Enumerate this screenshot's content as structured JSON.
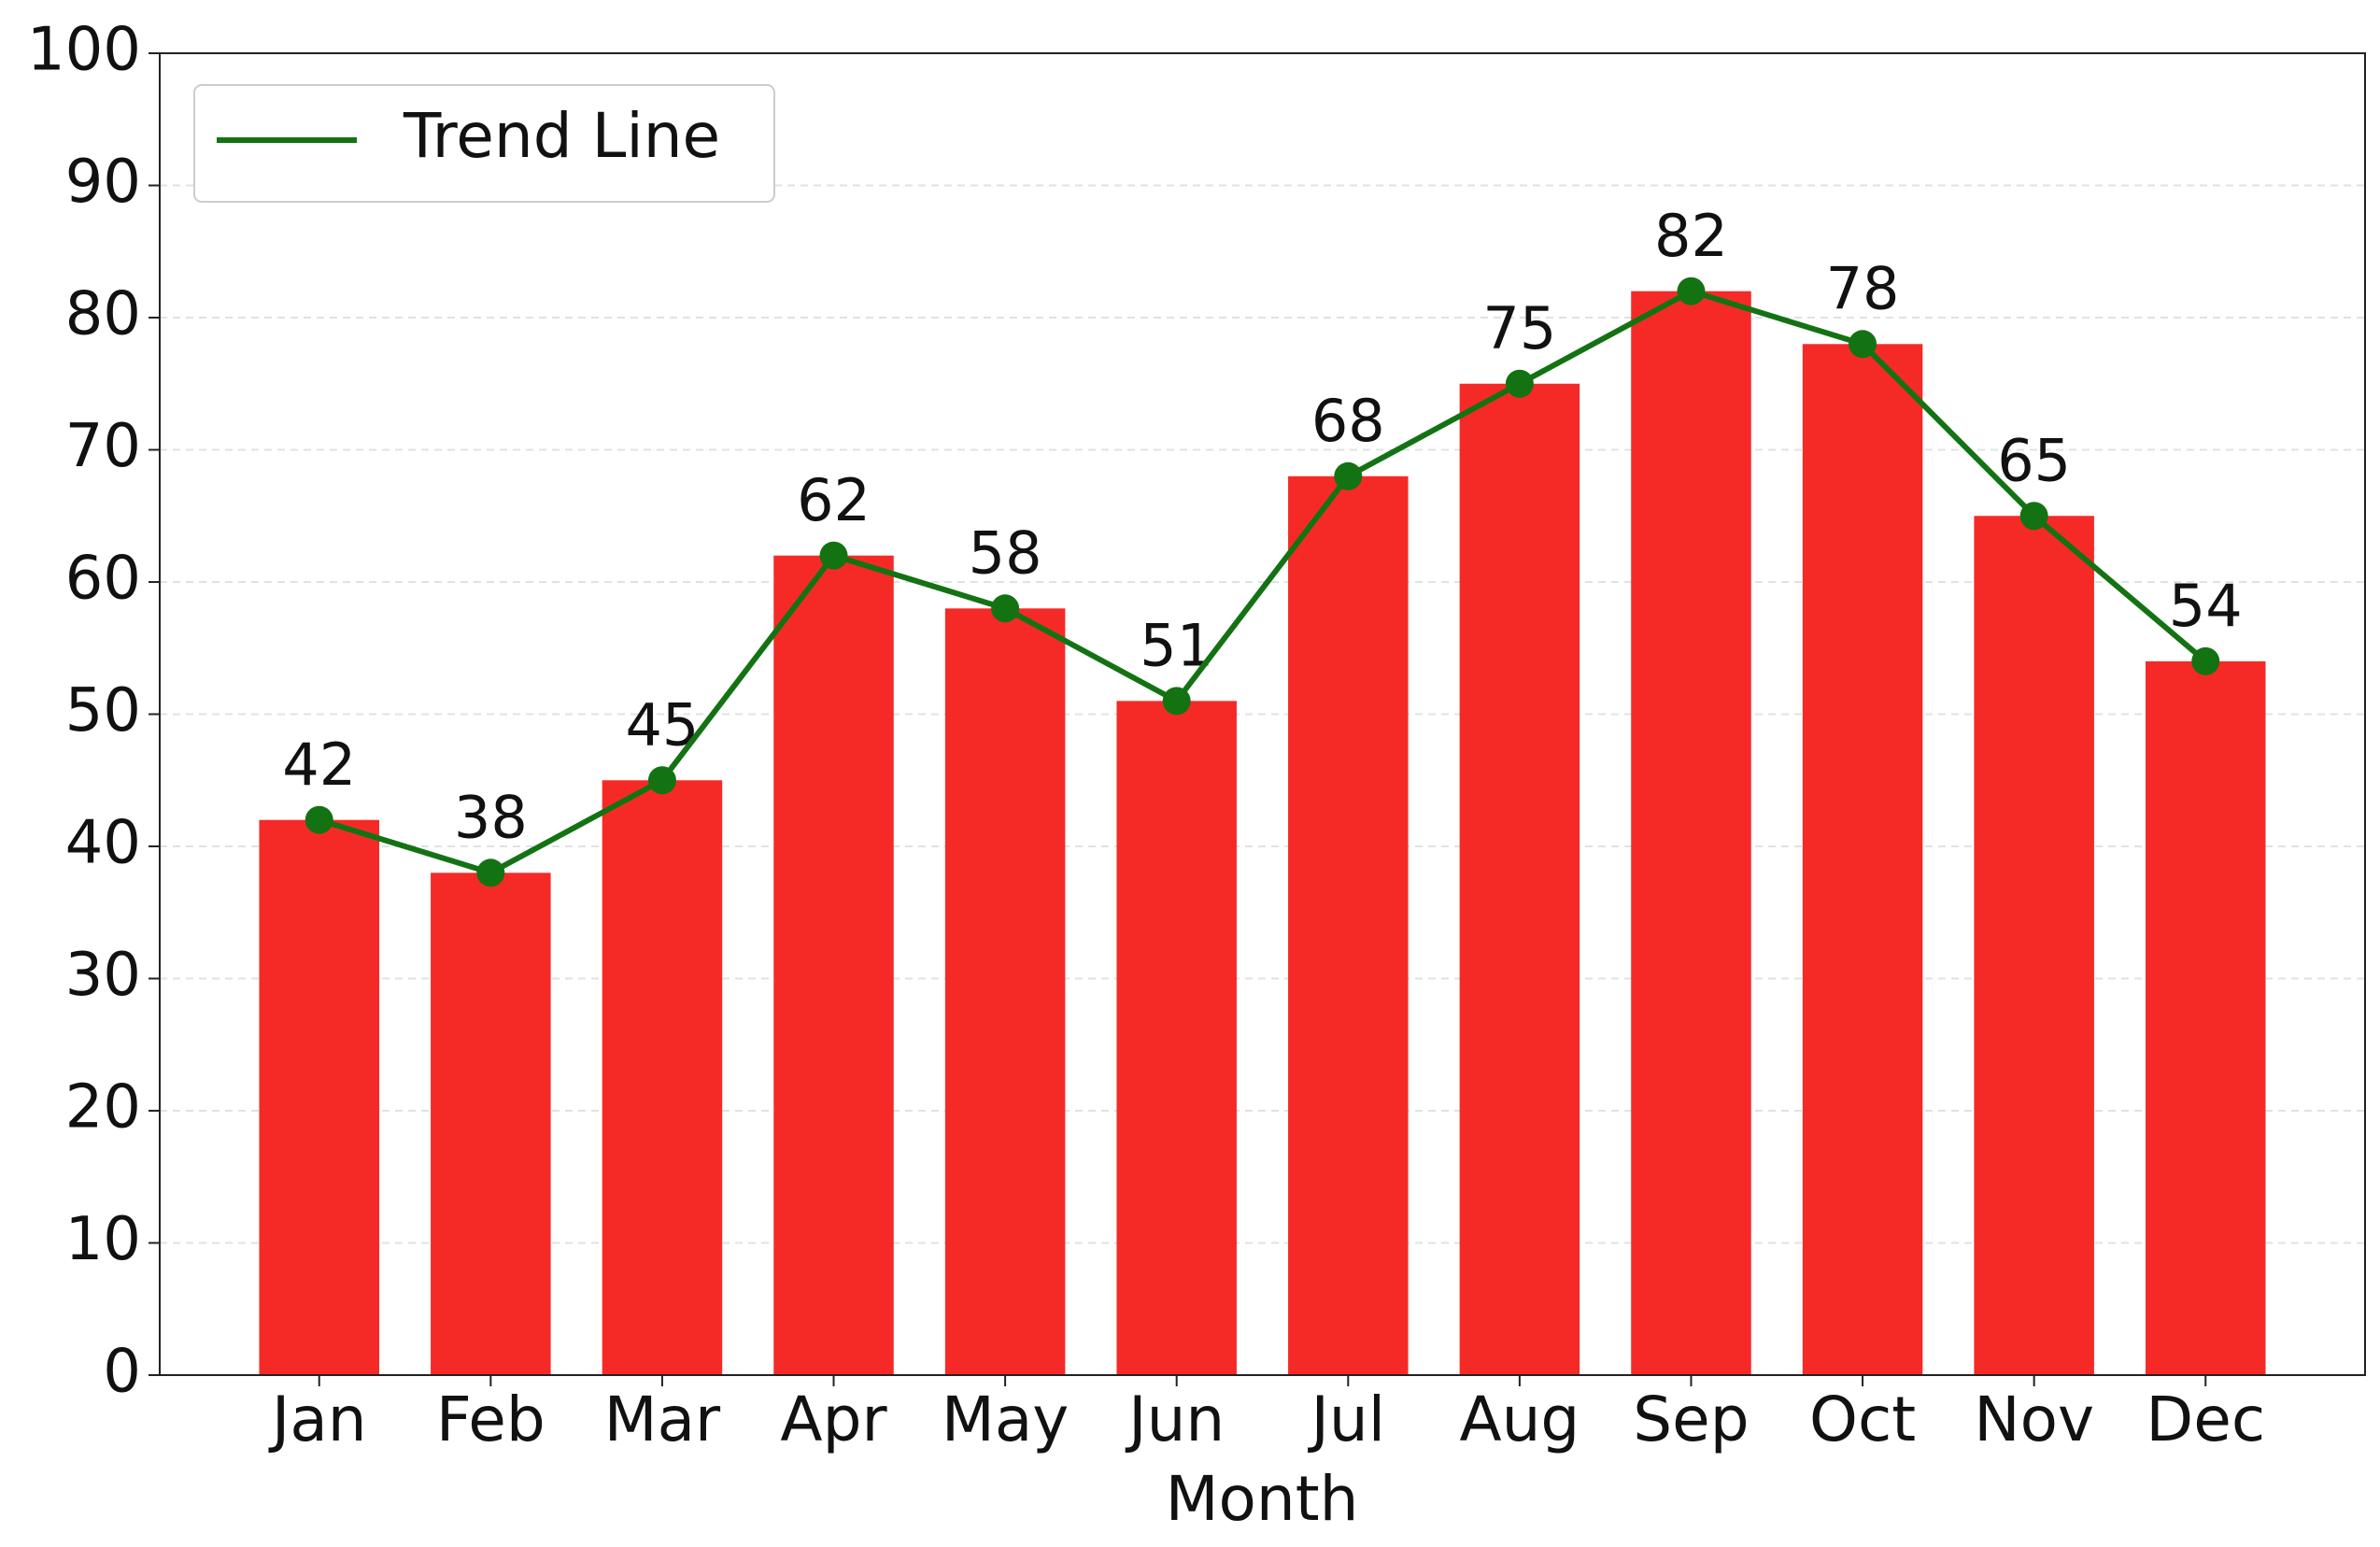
{
  "chart_data": {
    "type": "bar",
    "categories": [
      "Jan",
      "Feb",
      "Mar",
      "Apr",
      "May",
      "Jun",
      "Jul",
      "Aug",
      "Sep",
      "Oct",
      "Nov",
      "Dec"
    ],
    "values": [
      42,
      38,
      45,
      62,
      58,
      51,
      68,
      75,
      82,
      78,
      65,
      54
    ],
    "color": "#f52a27",
    "series": [
      {
        "name": "Trend Line",
        "type": "line",
        "color": "#137313",
        "values": [
          42,
          38,
          45,
          62,
          58,
          51,
          68,
          75,
          82,
          78,
          65,
          54
        ]
      }
    ],
    "xlabel": "Month",
    "ylim": [
      0,
      100
    ],
    "yticks": [
      0,
      10,
      20,
      30,
      40,
      50,
      60,
      70,
      80,
      90,
      100
    ],
    "grid": true,
    "legend": "upper left"
  }
}
